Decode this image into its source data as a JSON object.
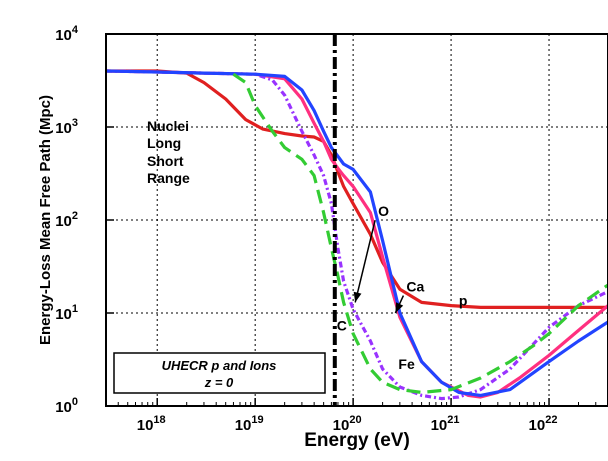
{
  "chart_data": {
    "type": "line",
    "title": "",
    "xlabel": "Energy (eV)",
    "ylabel": "Energy-Loss Mean Free Path (Mpc)",
    "x_scale": "log",
    "y_scale": "log",
    "xlim": [
      3e+17,
      4e+22
    ],
    "ylim": [
      1,
      10000
    ],
    "grid": true,
    "x_ticks": [
      {
        "base": "10",
        "exp": "18",
        "value": 1e+18
      },
      {
        "base": "10",
        "exp": "19",
        "value": 1e+19
      },
      {
        "base": "10",
        "exp": "20",
        "value": 1e+20
      },
      {
        "base": "10",
        "exp": "21",
        "value": 1e+21
      },
      {
        "base": "10",
        "exp": "22",
        "value": 1e+22
      }
    ],
    "y_ticks": [
      {
        "base": "10",
        "exp": "0",
        "value": 1
      },
      {
        "base": "10",
        "exp": "1",
        "value": 10
      },
      {
        "base": "10",
        "exp": "2",
        "value": 100
      },
      {
        "base": "10",
        "exp": "3",
        "value": 1000
      },
      {
        "base": "10",
        "exp": "4",
        "value": 10000
      }
    ],
    "vline_x": 6.5e+19,
    "series": [
      {
        "name": "p",
        "color": "#e02020",
        "dash": "solid",
        "x": [
          3e+17,
          1e+18,
          2e+18,
          3e+18,
          5e+18,
          8e+18,
          1.2e+19,
          2e+19,
          3e+19,
          4e+19,
          5e+19,
          6e+19,
          7e+19,
          8e+19,
          1e+20,
          1.5e+20,
          2e+20,
          3e+20,
          5e+20,
          1e+21,
          2e+21,
          5e+21,
          1e+22,
          4e+22
        ],
        "y": [
          4000,
          4000,
          3800,
          3000,
          2000,
          1200,
          950,
          850,
          800,
          780,
          700,
          500,
          330,
          230,
          150,
          70,
          35,
          18,
          13,
          12,
          11.5,
          11.5,
          11.5,
          11.5
        ]
      },
      {
        "name": "O",
        "color": "#ff3080",
        "dash": "solid",
        "x": [
          3e+17,
          1e+18,
          3e+18,
          1e+19,
          2e+19,
          3e+19,
          4e+19,
          5e+19,
          6e+19,
          7e+19,
          8e+19,
          1e+20,
          1.5e+20,
          2e+20,
          3e+20,
          5e+20,
          8e+20,
          1.5e+21,
          2e+21,
          3e+21,
          5e+21,
          1e+22,
          2e+22,
          4e+22
        ],
        "y": [
          4000,
          3900,
          3800,
          3700,
          3300,
          2000,
          1100,
          700,
          450,
          360,
          300,
          230,
          120,
          40,
          9,
          3,
          1.8,
          1.3,
          1.25,
          1.4,
          2,
          3.5,
          6.5,
          12
        ]
      },
      {
        "name": "Ca",
        "color": "#9933ff",
        "dash": "dash-dot",
        "x": [
          3e+17,
          1e+18,
          3e+18,
          1e+19,
          1.5e+19,
          2e+19,
          3e+19,
          4e+19,
          5e+19,
          6e+19,
          7e+19,
          8e+19,
          1e+20,
          1.5e+20,
          2e+20,
          3e+20,
          5e+20,
          8e+20,
          1.2e+21,
          2e+21,
          4e+21,
          1e+22,
          2e+22,
          4e+22
        ],
        "y": [
          4000,
          3900,
          3800,
          3700,
          3200,
          2200,
          900,
          500,
          300,
          150,
          50,
          22,
          11,
          5,
          2.5,
          1.6,
          1.3,
          1.2,
          1.25,
          1.5,
          2.5,
          7,
          12,
          17
        ]
      },
      {
        "name": "Fe",
        "color": "#2244ff",
        "dash": "solid",
        "x": [
          3e+17,
          1e+18,
          3e+18,
          1e+19,
          2e+19,
          3e+19,
          4e+19,
          5e+19,
          6e+19,
          8e+19,
          1e+20,
          1.5e+20,
          2e+20,
          3e+20,
          5e+20,
          8e+20,
          1.2e+21,
          2e+21,
          4e+21,
          1e+22,
          2e+22,
          4e+22
        ],
        "y": [
          4000,
          3900,
          3800,
          3700,
          3500,
          2500,
          1500,
          900,
          600,
          400,
          350,
          200,
          60,
          10,
          3,
          1.8,
          1.4,
          1.3,
          1.5,
          3,
          5,
          8
        ]
      },
      {
        "name": "C",
        "color": "#33cc33",
        "dash": "dash",
        "x": [
          6e+18,
          8e+18,
          1e+19,
          1.5e+19,
          2e+19,
          3e+19,
          4e+19,
          5e+19,
          6e+19,
          7e+19,
          8e+19,
          1e+20,
          1.5e+20,
          2e+20,
          3e+20,
          5e+20,
          1e+21,
          2e+21,
          4e+21,
          7e+21,
          1e+22,
          2e+22,
          4e+22
        ],
        "y": [
          3700,
          3000,
          1700,
          900,
          600,
          450,
          300,
          120,
          50,
          25,
          13,
          6,
          2.5,
          1.8,
          1.5,
          1.4,
          1.5,
          2,
          3,
          4.5,
          6,
          12,
          20
        ]
      }
    ],
    "annotations": [
      {
        "text": "O",
        "label_x": 1.8e+20,
        "label_y": 110,
        "arrow_to": [
          1.05e+20,
          13
        ]
      },
      {
        "text": "Ca",
        "label_x": 3.5e+20,
        "label_y": 17,
        "arrow_to": [
          2.7e+20,
          10
        ]
      },
      {
        "text": "p",
        "label_x": 1.2e+21,
        "label_y": 12
      },
      {
        "text": "C",
        "label_x": 6.8e+19,
        "label_y": 6.5
      },
      {
        "text": "Fe",
        "label_x": 2.9e+20,
        "label_y": 2.5
      }
    ],
    "legend_note": [
      "Nuclei",
      "Long",
      "Short",
      "Range"
    ],
    "box_lines": [
      "UHECR p and Ions",
      "z = 0"
    ]
  }
}
